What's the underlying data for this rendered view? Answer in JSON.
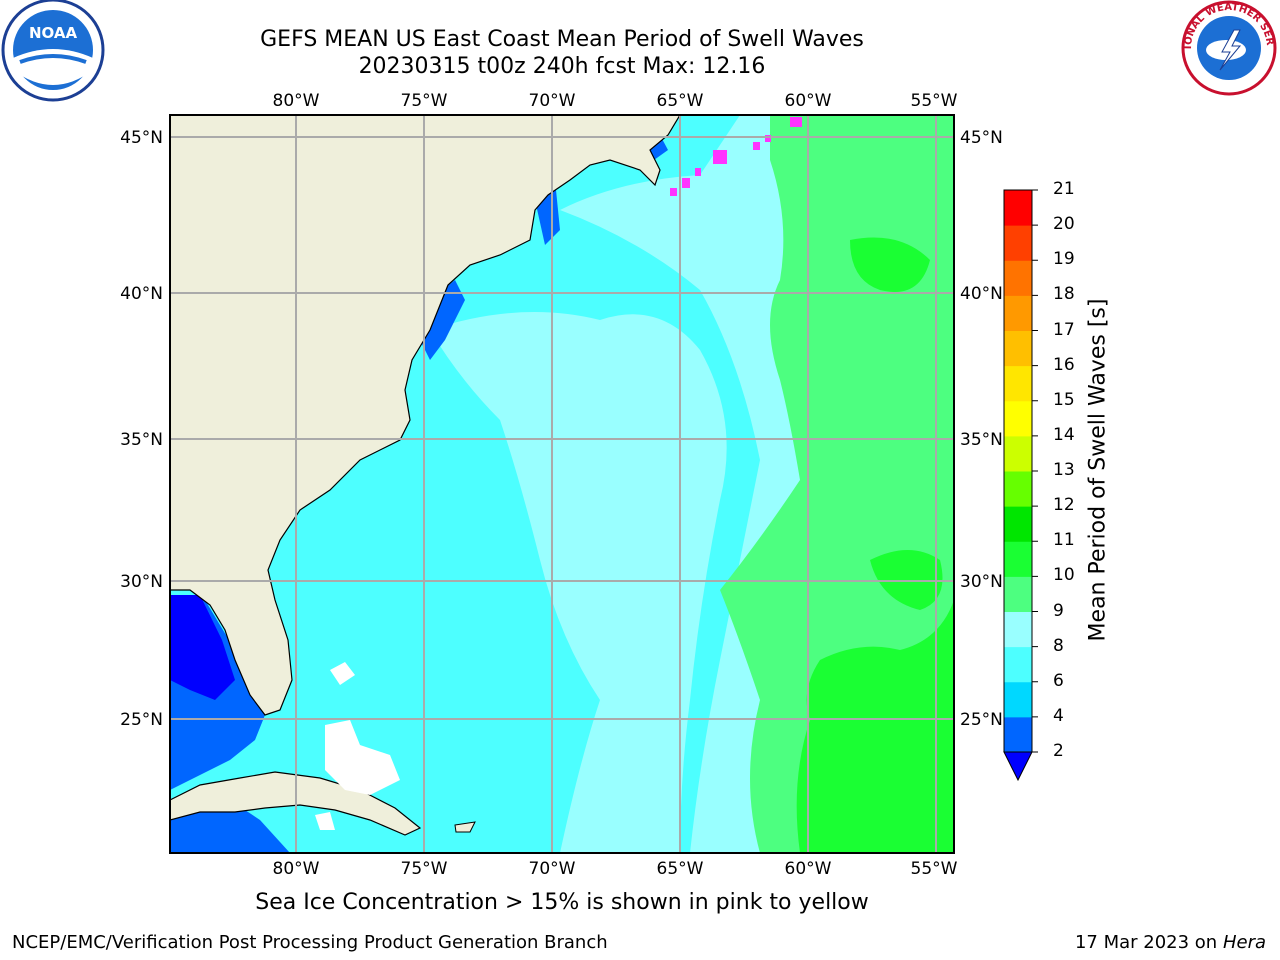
{
  "title": {
    "line1": "GEFS MEAN US East Coast Mean Period of Swell Waves",
    "line2": "20230315 t00z 240h fcst   Max: 12.16"
  },
  "map": {
    "lon_labels": [
      "80°W",
      "75°W",
      "70°W",
      "65°W",
      "60°W",
      "55°W"
    ],
    "lat_labels": [
      "45°N",
      "40°N",
      "35°N",
      "30°N",
      "25°N"
    ]
  },
  "colorbar": {
    "title": "Mean Period of Swell Waves [s]",
    "tick_labels": [
      "2",
      "4",
      "6",
      "8",
      "9",
      "10",
      "11",
      "12",
      "13",
      "14",
      "15",
      "16",
      "17",
      "18",
      "19",
      "20",
      "21"
    ],
    "colors": [
      "#0066ff",
      "#00d8ff",
      "#4dffff",
      "#99ffff",
      "#4dff80",
      "#1aff33",
      "#00e600",
      "#66ff00",
      "#ccff00",
      "#ffff00",
      "#ffe600",
      "#ffbf00",
      "#ff9900",
      "#ff7300",
      "#ff4000",
      "#ff0000"
    ],
    "extend_color": "#0000ff"
  },
  "subtitle": "Sea Ice Concentration > 15% is shown in pink to yellow",
  "footer": {
    "left": "NCEP/EMC/Verification Post Processing Product Generation Branch",
    "right_date": "17 Mar 2023 on",
    "right_machine": "Hera"
  },
  "logos": {
    "noaa": "NOAA",
    "nws": "NATIONAL WEATHER SERVICE"
  }
}
